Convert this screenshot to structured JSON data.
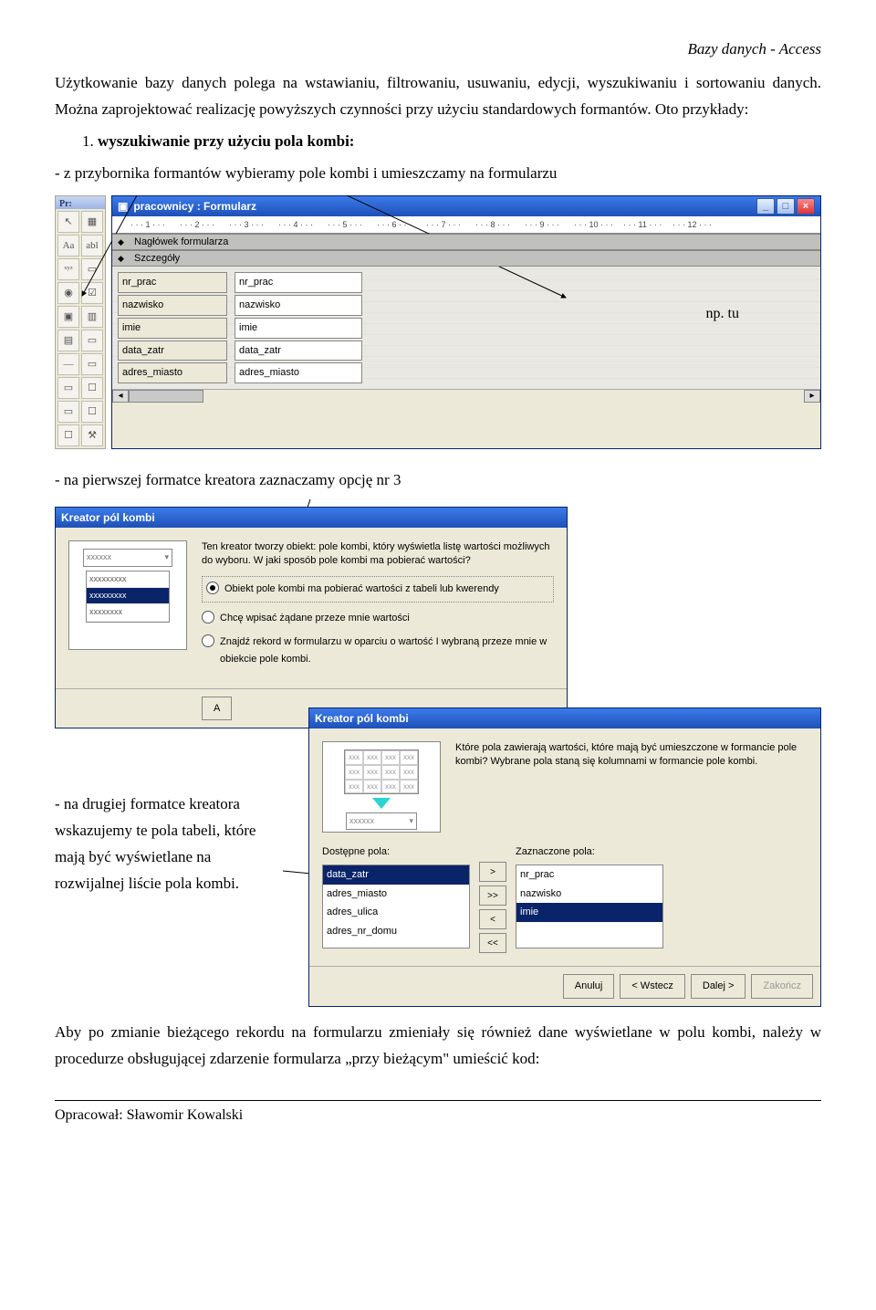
{
  "header": {
    "doc_title": "Bazy danych - Access"
  },
  "text": {
    "p1": "Użytkowanie bazy danych polega na wstawianiu, filtrowaniu, usuwaniu, edycji, wyszukiwaniu i sortowaniu danych. Można zaprojektować realizację powyższych czynności przy użyciu standardowych formantów. Oto przykłady:",
    "li1_prefix": "1. ",
    "li1_bold": "wyszukiwanie przy użyciu pola kombi:",
    "li1_sub": "- z przybornika formantów wybieramy pole kombi i umieszczamy na formularzu",
    "cap2": "- na pierwszej formatce kreatora zaznaczamy opcję nr 3",
    "cap3": "- na drugiej formatce kreatora wskazujemy te pola tabeli, które mają być wyświetlane na rozwijalnej liście pola kombi.",
    "p_last": "Aby po zmianie bieżącego rekordu na formularzu zmieniały się również dane wyświetlane w polu kombi, należy w procedurze obsługującej zdarzenie formularza „przy bieżącym\" umieścić kod:",
    "footer": "Opracował: Sławomir Kowalski"
  },
  "form_window": {
    "title": "pracownicy : Formularz",
    "ruler_ticks": [
      "1",
      "2",
      "3",
      "4",
      "5",
      "6",
      "7",
      "8",
      "9",
      "10",
      "11",
      "12"
    ],
    "section_header": "Nagłówek formularza",
    "section_detail": "Szczegóły",
    "fields": [
      {
        "label": "nr_prac",
        "src": "nr_prac"
      },
      {
        "label": "nazwisko",
        "src": "nazwisko"
      },
      {
        "label": "imie",
        "src": "imie"
      },
      {
        "label": "data_zatr",
        "src": "data_zatr"
      },
      {
        "label": "adres_miasto",
        "src": "adres_miasto"
      }
    ],
    "note": "np. tu"
  },
  "toolbox": {
    "label": "Pr:",
    "tools": [
      "↖",
      "▦",
      "Aa",
      "abl",
      "ˣʸᶻ",
      "▭",
      "◉",
      "☑",
      "▣",
      "▥",
      "▤",
      "▭",
      "—",
      "▭",
      "▭",
      "☐",
      "▭",
      "☐",
      "☐",
      "⚒"
    ]
  },
  "wizard1": {
    "title": "Kreator pól kombi",
    "intro": "Ten kreator tworzy obiekt: pole kombi, który wyświetla listę wartości możliwych do wyboru. W jaki sposób pole kombi ma pobierać wartości?",
    "opt1": "Obiekt pole kombi ma pobierać wartości z tabeli lub kwerendy",
    "opt2": "Chcę wpisać żądane przeze mnie wartości",
    "opt3": "Znajdź rekord w formularzu w oparciu o wartość I wybraną przeze mnie w obiekcie pole kombi.",
    "combo_placeholder": "xxxxxx",
    "list_items": [
      "xxxxxxxxx",
      "xxxxxxxxx",
      "xxxxxxxx"
    ]
  },
  "wizard2": {
    "title": "Kreator pól kombi",
    "intro": "Które pola zawierają wartości, które mają być umieszczone w formancie pole kombi? Wybrane pola staną się kolumnami w formancie pole kombi.",
    "available_label": "Dostępne pola:",
    "selected_label": "Zaznaczone pola:",
    "available": [
      "data_zatr",
      "adres_miasto",
      "adres_ulica",
      "adres_nr_domu"
    ],
    "selected": [
      "nr_prac",
      "nazwisko",
      "imie"
    ],
    "combo_placeholder": "xxxxxx",
    "move_btns": [
      ">",
      ">>",
      "<",
      "<<"
    ],
    "buttons": {
      "cancel": "Anuluj",
      "back": "< Wstecz",
      "next": "Dalej >",
      "finish": "Zakończ"
    }
  },
  "colors": {
    "titlebar_from": "#3c7bea",
    "titlebar_to": "#1e50b8",
    "classic_bg": "#ece9d8",
    "border": "#888888",
    "select_bg": "#0a246a"
  }
}
